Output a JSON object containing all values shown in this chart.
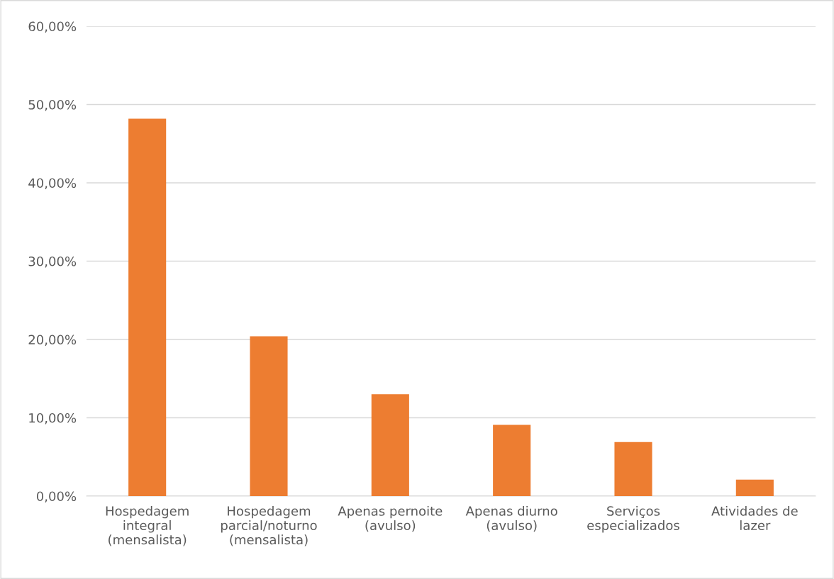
{
  "chart_data": {
    "type": "bar",
    "categories": [
      "Hospedagem\nintegral\n(mensalista)",
      "Hospedagem\nparcial/noturno\n(mensalista)",
      "Apenas pernoite\n(avulso)",
      "Apenas diurno\n(avulso)",
      "Serviços\nespecializados",
      "Atividades de\nlazer"
    ],
    "values": [
      48.2,
      20.4,
      13.0,
      9.1,
      6.9,
      2.1
    ],
    "color": "#ed7d31",
    "ylim": [
      0,
      60
    ],
    "yticks": [
      {
        "value": 0,
        "label": "0,00%"
      },
      {
        "value": 10,
        "label": "10,00%"
      },
      {
        "value": 20,
        "label": "20,00%"
      },
      {
        "value": 30,
        "label": "30,00%"
      },
      {
        "value": 40,
        "label": "40,00%"
      },
      {
        "value": 50,
        "label": "50,00%"
      },
      {
        "value": 60,
        "label": "60,00%"
      }
    ],
    "grid": "y"
  }
}
